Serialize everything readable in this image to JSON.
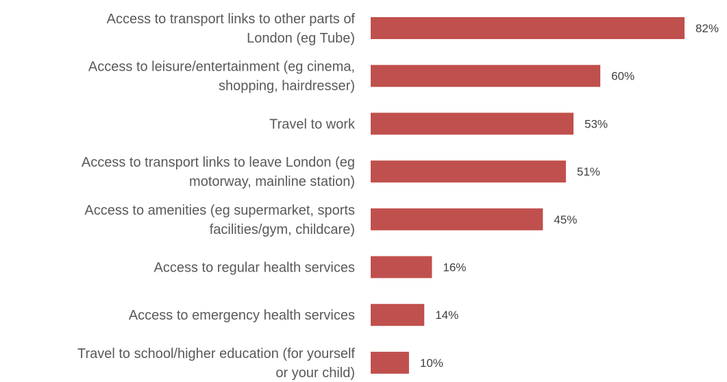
{
  "chart_data": {
    "type": "bar",
    "orientation": "horizontal",
    "categories": [
      [
        "Access to transport links to other parts of",
        "London (eg Tube)"
      ],
      [
        "Access to leisure/entertainment (eg cinema,",
        "shopping, hairdresser)"
      ],
      [
        "Travel to work"
      ],
      [
        "Access to transport links to leave London (eg",
        "motorway, mainline station)"
      ],
      [
        "Access to amenities (eg supermarket, sports",
        "facilities/gym, childcare)"
      ],
      [
        "Access to regular health services"
      ],
      [
        "Access to emergency health services"
      ],
      [
        "Travel to school/higher education (for yourself",
        "or your child)"
      ]
    ],
    "values": [
      82,
      60,
      53,
      51,
      45,
      16,
      14,
      10
    ],
    "data_labels": [
      "82%",
      "60%",
      "53%",
      "51%",
      "45%",
      "16%",
      "14%",
      "10%"
    ],
    "unit": "%",
    "xlim": [
      0,
      82
    ],
    "grid": false,
    "legend": "none",
    "bar_color": "#c0504d"
  }
}
